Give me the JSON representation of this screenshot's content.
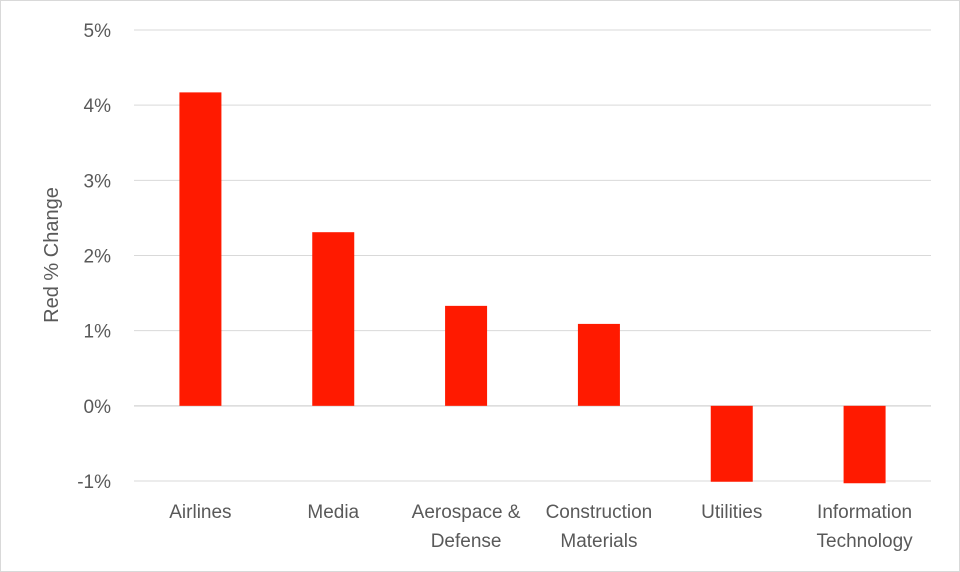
{
  "chart_data": {
    "type": "bar",
    "title": "",
    "xlabel": "",
    "ylabel": "Red % Change",
    "ylim": [
      -1,
      5
    ],
    "yticks": [
      5,
      4,
      3,
      2,
      1,
      0,
      -1
    ],
    "ytick_labels": [
      "5%",
      "4%",
      "3%",
      "2%",
      "1%",
      "0%",
      "-1%"
    ],
    "categories": [
      [
        "Airlines"
      ],
      [
        "Media"
      ],
      [
        "Aerospace &",
        "Defense"
      ],
      [
        "Construction",
        "Materials"
      ],
      [
        "Utilities"
      ],
      [
        "Information",
        "Technology"
      ]
    ],
    "values": [
      4.17,
      2.31,
      1.33,
      1.09,
      -1.01,
      -1.03
    ],
    "bar_color": "#ff1a00",
    "grid": true,
    "grid_color": "#d9d9d9"
  }
}
